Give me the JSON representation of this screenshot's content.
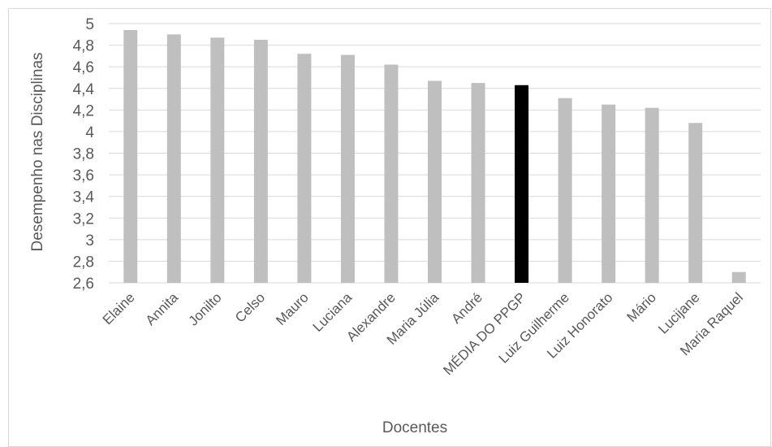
{
  "chart_data": {
    "type": "bar",
    "title": "",
    "xlabel": "Docentes",
    "ylabel": "Desempenho nas Disciplinas",
    "ylim": [
      2.6,
      5
    ],
    "ytick_step": 0.2,
    "yticks": [
      "2,6",
      "2,8",
      "3",
      "3,2",
      "3,4",
      "3,6",
      "3,8",
      "4",
      "4,2",
      "4,4",
      "4,6",
      "4,8",
      "5"
    ],
    "categories": [
      "Elaine",
      "Annita",
      "Jonilto",
      "Celso",
      "Mauro",
      "Luciana",
      "Alexandre",
      "Maria Júlia",
      "André",
      "MÉDIA DO PPGP",
      "Luiz Guilherme",
      "Luiz Honorato",
      "Mário",
      "Lucijane",
      "Maria Raquel"
    ],
    "values": [
      4.94,
      4.9,
      4.87,
      4.85,
      4.72,
      4.71,
      4.62,
      4.47,
      4.45,
      4.43,
      4.31,
      4.25,
      4.22,
      4.08,
      2.7
    ],
    "highlight_category": "MÉDIA DO PPGP",
    "grid": true,
    "legend": "none",
    "colors": {
      "bar": "#bfbfbf",
      "highlight": "#000000",
      "grid": "#d9d9d9",
      "text": "#595959"
    }
  }
}
